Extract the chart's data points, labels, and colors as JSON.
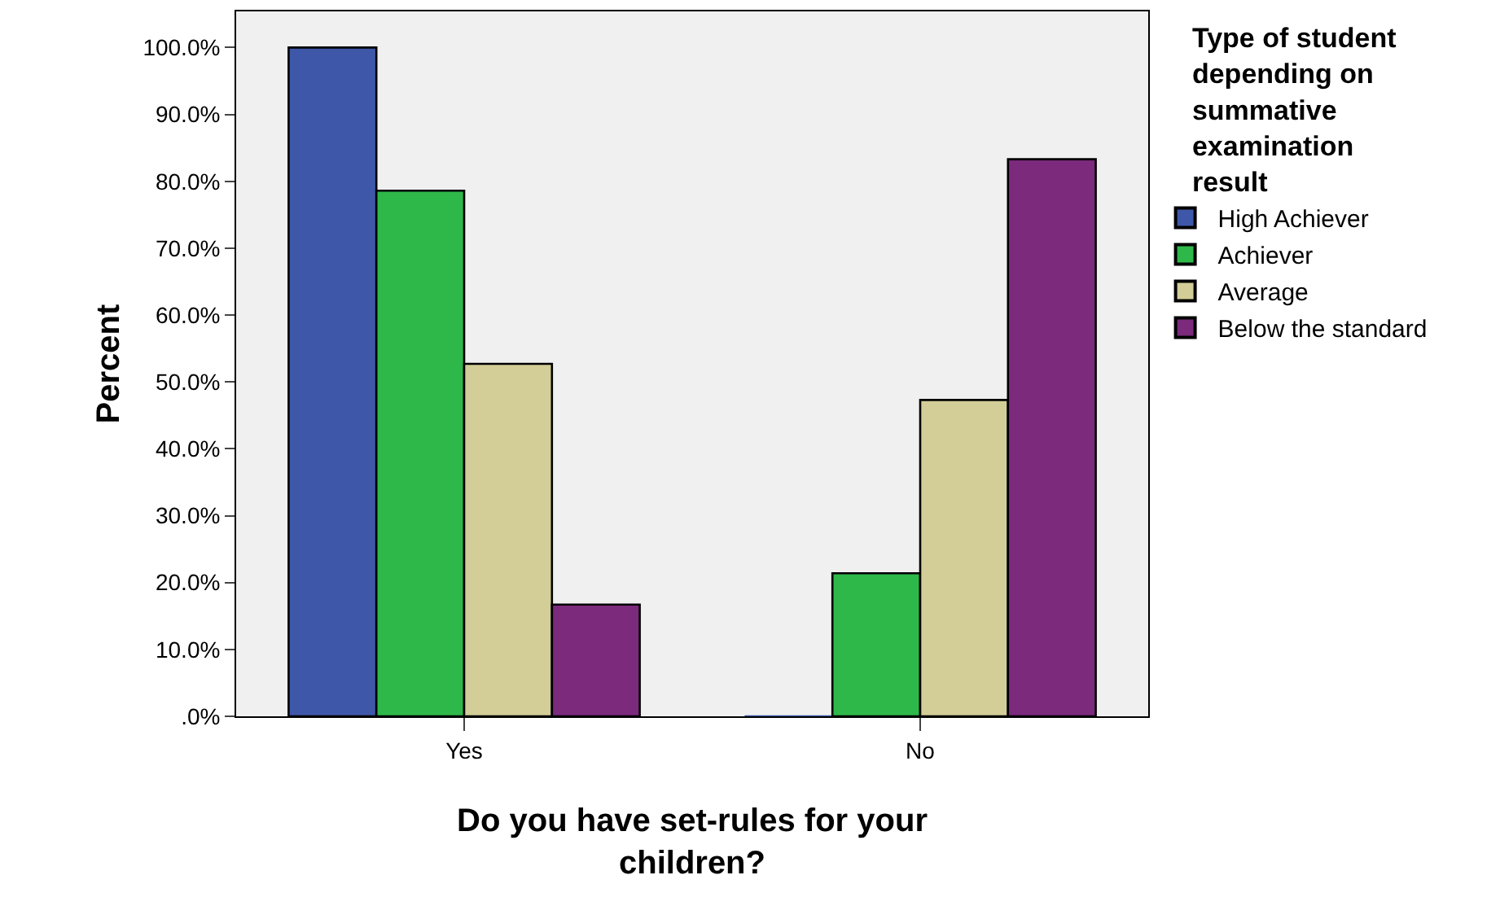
{
  "chart_data": {
    "type": "bar",
    "categories": [
      "Yes",
      "No"
    ],
    "series": [
      {
        "name": "High Achiever",
        "color": "#3f57a8",
        "values": [
          100,
          0
        ]
      },
      {
        "name": "Achiever",
        "color": "#2eb84a",
        "values": [
          78.6,
          21.4
        ]
      },
      {
        "name": "Average",
        "color": "#d3ce97",
        "values": [
          52.7,
          47.3
        ]
      },
      {
        "name": "Below the standard",
        "color": "#7b2a7c",
        "values": [
          16.7,
          83.3
        ]
      }
    ],
    "xlabel": "Do you have set-rules for your children?",
    "ylabel": "Percent",
    "legend_title": "Type of student depending on summative examination result",
    "legend": "right",
    "grid": false,
    "ylim": [
      0,
      105.4
    ],
    "yticks": [
      {
        "value": 0,
        "label": ".0%"
      },
      {
        "value": 10,
        "label": "10.0%"
      },
      {
        "value": 20,
        "label": "20.0%"
      },
      {
        "value": 30,
        "label": "30.0%"
      },
      {
        "value": 40,
        "label": "40.0%"
      },
      {
        "value": 50,
        "label": "50.0%"
      },
      {
        "value": 60,
        "label": "60.0%"
      },
      {
        "value": 70,
        "label": "70.0%"
      },
      {
        "value": 80,
        "label": "80.0%"
      },
      {
        "value": 90,
        "label": "90.0%"
      },
      {
        "value": 100,
        "label": "100.0%"
      }
    ]
  }
}
